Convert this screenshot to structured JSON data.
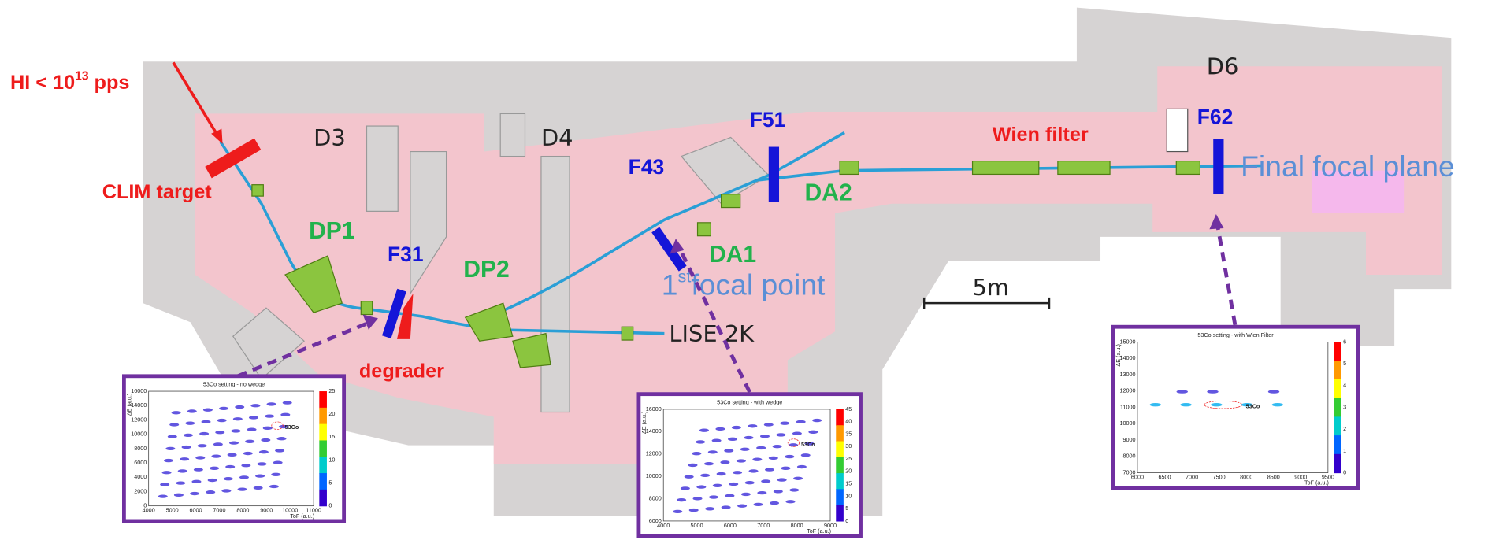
{
  "beam": {
    "text": "HI < 10",
    "sup": "13",
    "after": " pps"
  },
  "target": "CLIM target",
  "halls": [
    "D3",
    "D4",
    "D6"
  ],
  "focal_labels": [
    "F31",
    "F43",
    "F51",
    "F62"
  ],
  "magnets": [
    "DP1",
    "DP2",
    "DA1",
    "DA2"
  ],
  "wien": "Wien filter",
  "final_plane": "Final focal plane",
  "first_focal": {
    "base": "1",
    "sup": "st",
    "after": "focal point"
  },
  "degrader": "degrader",
  "scale": "5m",
  "lise": "LISE 2K",
  "insets": [
    {
      "title": "53Co setting - no wedge",
      "ion": "53Co",
      "ylabel": "ΔE (a.u.)",
      "xlabel": "ToF (a.u.)",
      "yticks": [
        "0",
        "2000",
        "4000",
        "6000",
        "8000",
        "10000",
        "12000",
        "14000",
        "16000"
      ],
      "xticks": [
        "4000",
        "5000",
        "6000",
        "7000",
        "8000",
        "9000",
        "10000",
        "11000"
      ],
      "zticks": [
        "0",
        "5",
        "10",
        "15",
        "20",
        "25"
      ]
    },
    {
      "title": "53Co setting - with wedge",
      "ion": "53Co",
      "ylabel": "ΔE (a.u.)",
      "xlabel": "ToF (a.u.)",
      "yticks": [
        "6000",
        "8000",
        "10000",
        "12000",
        "14000",
        "16000"
      ],
      "xticks": [
        "4000",
        "5000",
        "6000",
        "7000",
        "8000",
        "9000"
      ],
      "zticks": [
        "0",
        "5",
        "10",
        "15",
        "20",
        "25",
        "30",
        "35",
        "40",
        "45"
      ]
    },
    {
      "title": "53Co setting - with Wien Filter",
      "ion": "53Co",
      "ylabel": "ΔE (a.u.)",
      "xlabel": "ToF (a.u.)",
      "yticks": [
        "7000",
        "8000",
        "9000",
        "10000",
        "11000",
        "12000",
        "13000",
        "14000",
        "15000"
      ],
      "xticks": [
        "6000",
        "6500",
        "7000",
        "7500",
        "8000",
        "8500",
        "9000",
        "9500"
      ],
      "zticks": [
        "0",
        "1",
        "2",
        "3",
        "4",
        "5",
        "6"
      ]
    }
  ]
}
